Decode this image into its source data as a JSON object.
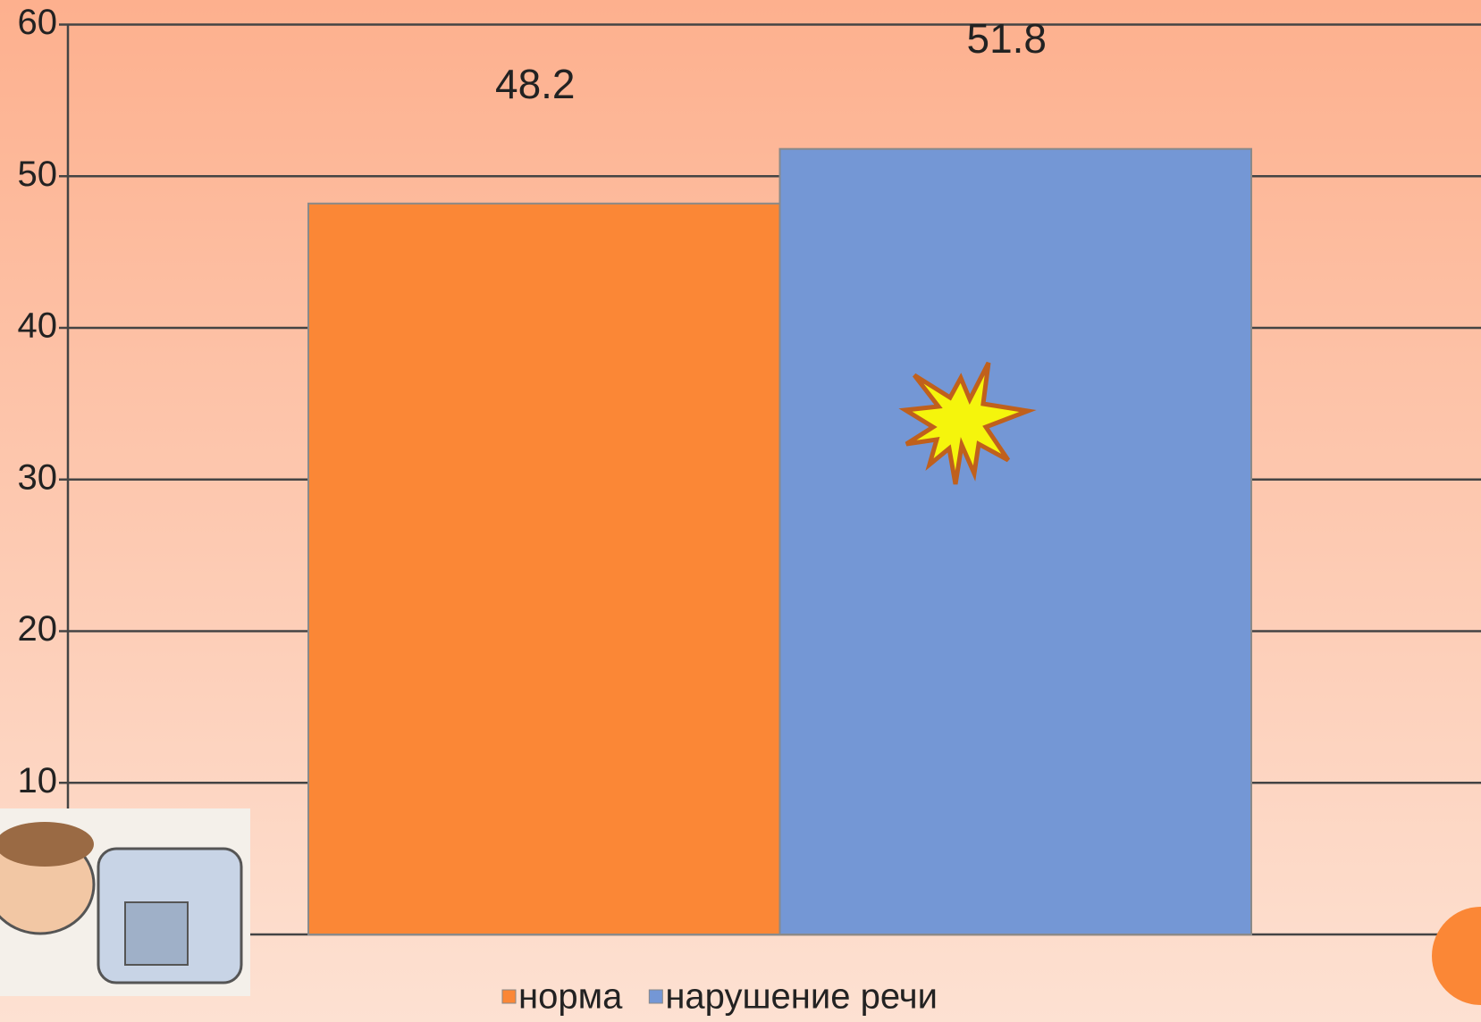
{
  "chart_data": {
    "type": "bar",
    "categories": [
      null
    ],
    "series": [
      {
        "name": "норма",
        "color": "#fb8736",
        "values": [
          48.2
        ]
      },
      {
        "name": "нарушение речи",
        "color": "#7497d5",
        "values": [
          51.8
        ]
      }
    ],
    "ylim": [
      0,
      60
    ],
    "yticks": [
      10,
      20,
      30,
      40,
      50,
      60
    ],
    "grid": true,
    "legend": "bottom"
  }
}
